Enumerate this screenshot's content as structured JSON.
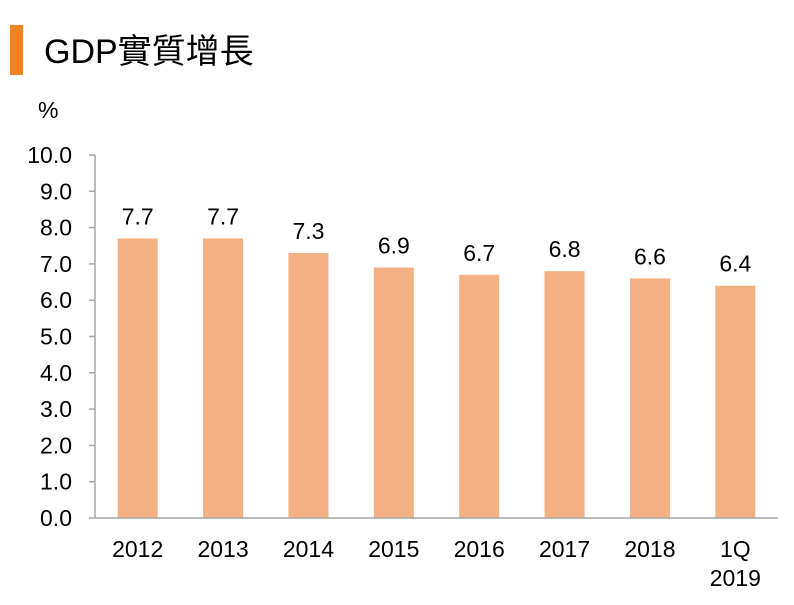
{
  "colors": {
    "accent": "#F58220",
    "bar": "#F4B183",
    "axis": "#A6A6A6",
    "text": "#000000"
  },
  "chart_data": {
    "type": "bar",
    "title": "GDP實質增長",
    "ylabel": "%",
    "xlabel": "",
    "categories": [
      [
        "2012"
      ],
      [
        "2013"
      ],
      [
        "2014"
      ],
      [
        "2015"
      ],
      [
        "2016"
      ],
      [
        "2017"
      ],
      [
        "2018"
      ],
      [
        "1Q",
        "2019"
      ]
    ],
    "values": [
      7.7,
      7.7,
      7.3,
      6.9,
      6.7,
      6.8,
      6.6,
      6.4
    ],
    "value_labels": [
      "7.7",
      "7.7",
      "7.3",
      "6.9",
      "6.7",
      "6.8",
      "6.6",
      "6.4"
    ],
    "ylim": [
      0,
      10
    ],
    "yticks": [
      "0.0",
      "1.0",
      "2.0",
      "3.0",
      "4.0",
      "5.0",
      "6.0",
      "7.0",
      "8.0",
      "9.0",
      "10.0"
    ],
    "grid": false,
    "legend": "none"
  }
}
